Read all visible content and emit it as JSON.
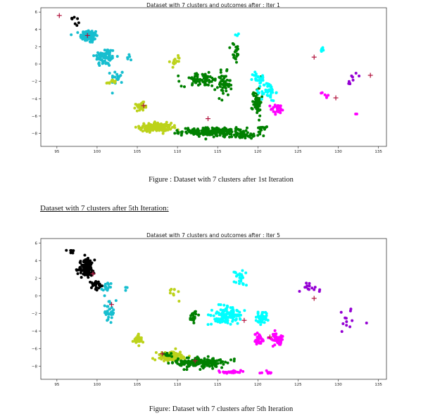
{
  "figure1": {
    "caption": "Figure : Dataset with 7 clusters after 1st Iteration"
  },
  "section_heading": "Dataset with 7 clusters after 5th Iteration:",
  "figure2": {
    "caption": "Figure: Dataset with 7 clusters after 5th Iteration"
  },
  "chart_data": [
    {
      "type": "scatter",
      "title": "Dataset with 7 clusters and outcomes after : Iter 1",
      "xlabel": "",
      "ylabel": "",
      "xlim": [
        93,
        136
      ],
      "ylim": [
        -9.5,
        6.5
      ],
      "xticks": [
        95,
        100,
        105,
        110,
        115,
        120,
        125,
        130,
        135
      ],
      "yticks": [
        -8,
        -6,
        -4,
        -2,
        0,
        2,
        4,
        6
      ],
      "grid": false,
      "legend": "none",
      "clusters": [
        {
          "color": "#000000",
          "blobs": [
            [
              96.8,
              5.3,
              0.5,
              0.15,
              5
            ],
            [
              97.5,
              4.6,
              0.3,
              0.2,
              3
            ]
          ]
        },
        {
          "color": "#17becf",
          "blobs": [
            [
              99,
              3.2,
              1.0,
              0.7,
              90
            ],
            [
              101,
              0.8,
              1.2,
              1.0,
              80
            ],
            [
              102.5,
              -1.5,
              0.7,
              0.8,
              20
            ],
            [
              104,
              0.7,
              0.5,
              0.5,
              5
            ]
          ]
        },
        {
          "color": "#bcd21a",
          "blobs": [
            [
              101.8,
              -2.1,
              0.6,
              0.3,
              12
            ],
            [
              105.5,
              -4.9,
              0.6,
              0.4,
              35
            ],
            [
              107.3,
              -7.3,
              1.8,
              0.45,
              160
            ],
            [
              109.7,
              0.4,
              0.6,
              0.6,
              14
            ]
          ]
        },
        {
          "color": "#008000",
          "blobs": [
            [
              114.5,
              -7.8,
              3.5,
              0.4,
              220
            ],
            [
              118,
              -8.3,
              2.0,
              0.25,
              45
            ],
            [
              113,
              -1.8,
              2.2,
              0.7,
              80
            ],
            [
              115.8,
              -2.4,
              0.7,
              1.3,
              50
            ],
            [
              117.2,
              1.3,
              0.5,
              1.1,
              22
            ],
            [
              119.9,
              -4.3,
              0.5,
              1.5,
              55
            ],
            [
              120.5,
              -7.3,
              0.5,
              0.4,
              10
            ]
          ]
        },
        {
          "color": "#ff00ff",
          "blobs": [
            [
              122.5,
              -5.2,
              0.8,
              0.5,
              30
            ],
            [
              128.5,
              -3.5,
              0.7,
              0.4,
              6
            ],
            [
              132.2,
              -5.7,
              0.2,
              0.2,
              2
            ]
          ]
        },
        {
          "color": "#9400d3",
          "blobs": [
            [
              131.5,
              -1.6,
              1.5,
              1.0,
              9
            ]
          ]
        },
        {
          "color": "#00ffff",
          "blobs": [
            [
              121.3,
              -3.2,
              0.8,
              1.0,
              45
            ],
            [
              120.1,
              -1.6,
              0.7,
              0.6,
              25
            ],
            [
              128,
              1.6,
              0.4,
              0.4,
              6
            ],
            [
              117.5,
              3.3,
              0.4,
              0.3,
              3
            ]
          ]
        }
      ],
      "centroids": [
        {
          "x": 95.3,
          "y": 5.6
        },
        {
          "x": 98.8,
          "y": 3.3
        },
        {
          "x": 105.8,
          "y": -4.8
        },
        {
          "x": 113.8,
          "y": -6.3
        },
        {
          "x": 127,
          "y": 0.8
        },
        {
          "x": 129.7,
          "y": -3.9
        },
        {
          "x": 134,
          "y": -1.3
        }
      ]
    },
    {
      "type": "scatter",
      "title": "Dataset with 7 clusters and outcomes after : Iter 5",
      "xlabel": "",
      "ylabel": "",
      "xlim": [
        93,
        136
      ],
      "ylim": [
        -9.5,
        6.5
      ],
      "xticks": [
        95,
        100,
        105,
        110,
        115,
        120,
        125,
        130,
        135
      ],
      "yticks": [
        -8,
        -6,
        -4,
        -2,
        0,
        2,
        4,
        6
      ],
      "grid": false,
      "legend": "none",
      "clusters": [
        {
          "color": "#000000",
          "blobs": [
            [
              98.6,
              3.1,
              0.9,
              0.9,
              110
            ],
            [
              96.8,
              5.1,
              0.5,
              0.25,
              6
            ],
            [
              99.8,
              1.3,
              0.8,
              0.5,
              25
            ]
          ]
        },
        {
          "color": "#17becf",
          "blobs": [
            [
              101.2,
              0.9,
              0.6,
              0.5,
              18
            ],
            [
              101.5,
              -1.7,
              0.8,
              1.0,
              30
            ],
            [
              103.5,
              0.8,
              0.4,
              0.3,
              4
            ]
          ]
        },
        {
          "color": "#bcd21a",
          "blobs": [
            [
              105.2,
              -5.0,
              0.6,
              0.5,
              30
            ],
            [
              109.2,
              -6.9,
              1.6,
              0.45,
              130
            ],
            [
              109.6,
              0.3,
              0.4,
              0.5,
              10
            ]
          ]
        },
        {
          "color": "#008000",
          "blobs": [
            [
              113,
              -7.6,
              2.8,
              0.5,
              190
            ],
            [
              112,
              -2.4,
              0.5,
              0.5,
              25
            ],
            [
              108.8,
              -6.7,
              0.5,
              0.3,
              10
            ]
          ]
        },
        {
          "color": "#00ffff",
          "blobs": [
            [
              116.2,
              -2.2,
              1.7,
              0.9,
              120
            ],
            [
              117.8,
              2.0,
              0.7,
              1.0,
              25
            ],
            [
              120.5,
              -2.5,
              0.7,
              0.7,
              35
            ]
          ]
        },
        {
          "color": "#ff00ff",
          "blobs": [
            [
              116.8,
              -8.7,
              1.5,
              0.15,
              25
            ],
            [
              120,
              -5.0,
              0.5,
              0.6,
              35
            ],
            [
              122.3,
              -4.9,
              0.8,
              0.7,
              40
            ],
            [
              121.3,
              -8.7,
              0.8,
              0.2,
              8
            ]
          ]
        },
        {
          "color": "#9400d3",
          "blobs": [
            [
              126.5,
              0.9,
              1.3,
              0.6,
              14
            ],
            [
              131.5,
              -2.5,
              2.3,
              1.2,
              12
            ]
          ]
        }
      ],
      "centroids": [
        {
          "x": 99.5,
          "y": 2.5
        },
        {
          "x": 101.8,
          "y": -1.0
        },
        {
          "x": 108.1,
          "y": -6.6
        },
        {
          "x": 112.2,
          "y": -7.4
        },
        {
          "x": 118.3,
          "y": -2.8
        },
        {
          "x": 121.5,
          "y": -4.7
        },
        {
          "x": 127,
          "y": -0.3
        }
      ]
    }
  ]
}
